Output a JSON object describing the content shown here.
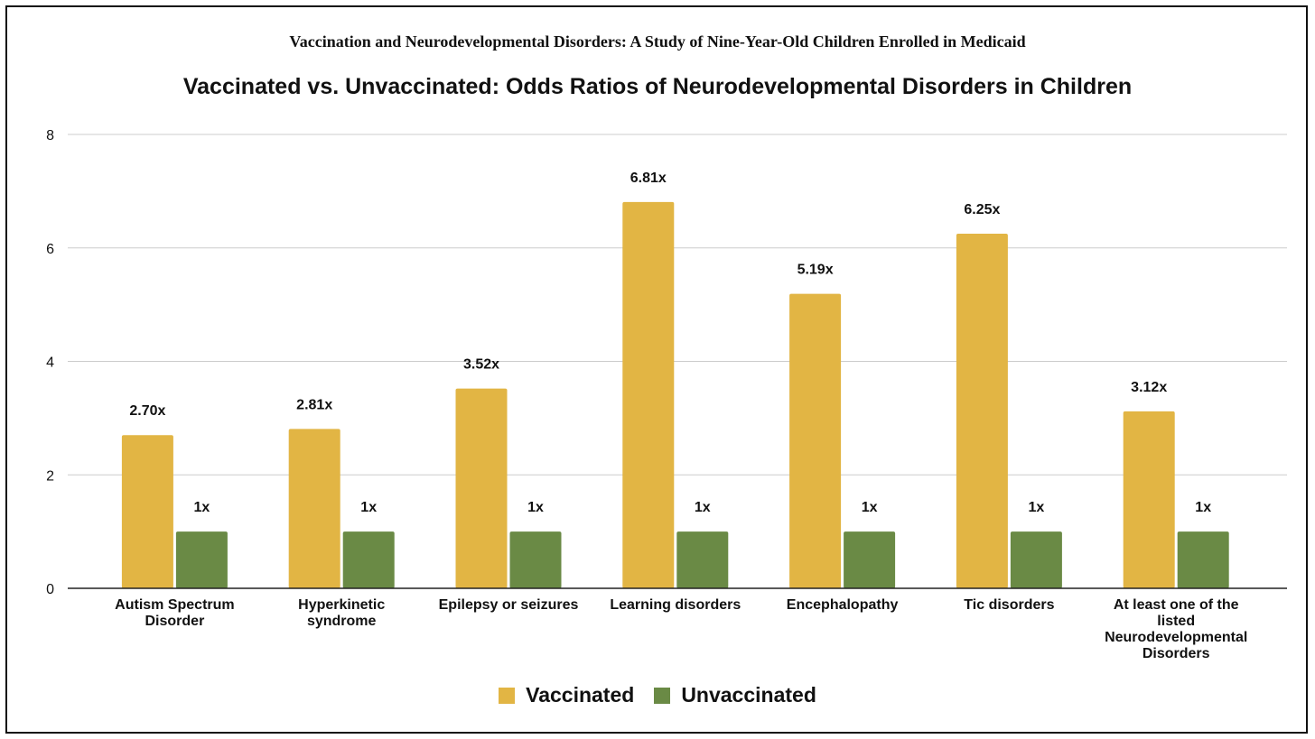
{
  "supertitle": "Vaccination and Neurodevelopmental Disorders: A Study of Nine-Year-Old Children Enrolled in Medicaid",
  "chart_data": {
    "type": "bar",
    "title": "Vaccinated vs. Unvaccinated: Odds Ratios of Neurodevelopmental Disorders in Children",
    "xlabel": "",
    "ylabel": "",
    "ylim": [
      0,
      8
    ],
    "yticks": [
      "0",
      "2",
      "4",
      "6",
      "8"
    ],
    "grid": true,
    "legend_position": "bottom",
    "categories": [
      [
        "Autism Spectrum",
        "Disorder"
      ],
      [
        "Hyperkinetic",
        "syndrome"
      ],
      [
        "Epilepsy or seizures"
      ],
      [
        "Learning disorders"
      ],
      [
        "Encephalopathy"
      ],
      [
        "Tic disorders"
      ],
      [
        "At least one of the",
        "listed",
        "Neurodevelopmental",
        "Disorders"
      ]
    ],
    "series": [
      {
        "name": "Vaccinated",
        "color": "#E2B544",
        "values": [
          2.7,
          2.81,
          3.52,
          6.81,
          5.19,
          6.25,
          3.12
        ],
        "labels": [
          "2.70x",
          "2.81x",
          "3.52x",
          "6.81x",
          "5.19x",
          "6.25x",
          "3.12x"
        ]
      },
      {
        "name": "Unvaccinated",
        "color": "#6A8A45",
        "values": [
          1,
          1,
          1,
          1,
          1,
          1,
          1
        ],
        "labels": [
          "1x",
          "1x",
          "1x",
          "1x",
          "1x",
          "1x",
          "1x"
        ]
      }
    ]
  }
}
